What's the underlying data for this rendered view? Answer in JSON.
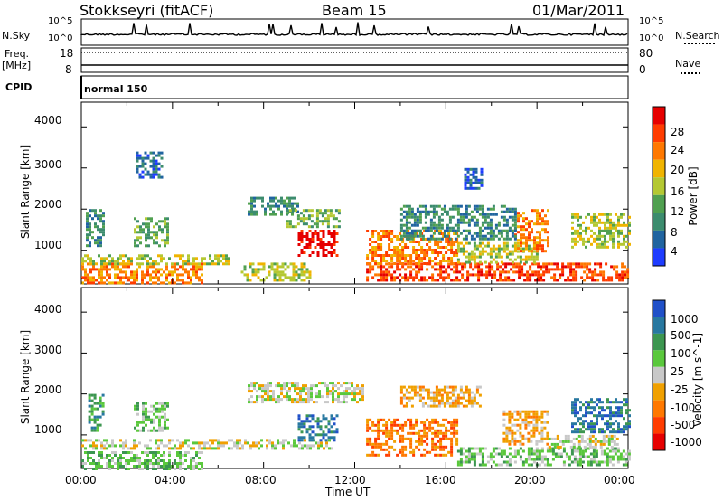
{
  "header": {
    "radar": "Stokkseyri (fitACF)",
    "beam": "Beam 15",
    "date": "01/Mar/2011"
  },
  "strips": {
    "nsky_label": "N.Sky",
    "nsky_ticks": [
      "10^5",
      "10^0"
    ],
    "nsearch_label": "N.Search",
    "nsearch_ticks": [
      "10^5",
      "10^0"
    ],
    "freq_label": "Freq.",
    "freq_unit": "[MHz]",
    "freq_ticks": [
      "18",
      "8"
    ],
    "nave_label": "Nave",
    "nave_ticks": [
      "80",
      "0"
    ],
    "cpid_label": "CPID",
    "cpid_value": "normal 150"
  },
  "colors": {
    "power": [
      "#1e3cff",
      "#2064a0",
      "#3c8c6e",
      "#50a050",
      "#b4c832",
      "#f0b400",
      "#ff7800",
      "#ff3c00",
      "#e60000"
    ],
    "velocity": [
      "#2050c8",
      "#2878a0",
      "#3c9650",
      "#5ac83c",
      "#c8c8c8",
      "#f0a000",
      "#ff7800",
      "#ff3c00",
      "#e60000"
    ]
  },
  "chart_data": [
    {
      "type": "heatmap",
      "panel": "power",
      "ylabel": "Slant Range [km]",
      "yticks": [
        "1000",
        "2000",
        "3000",
        "4000"
      ],
      "ylim": [
        180,
        4600
      ],
      "xlim": [
        0,
        24
      ],
      "colorbar_label": "Power [dB]",
      "colorbar_ticks": [
        "4",
        "8",
        "12",
        "16",
        "20",
        "24",
        "28"
      ],
      "regions": [
        {
          "t0": 0.0,
          "t1": 5.3,
          "r0": 200,
          "r1": 700,
          "level": 6
        },
        {
          "t0": 0.0,
          "t1": 6.5,
          "r0": 700,
          "r1": 900,
          "level": 4
        },
        {
          "t0": 0.2,
          "t1": 1.0,
          "r0": 1100,
          "r1": 2000,
          "level": 2
        },
        {
          "t0": 2.3,
          "t1": 3.8,
          "r0": 1100,
          "r1": 1800,
          "level": 3
        },
        {
          "t0": 2.4,
          "t1": 3.5,
          "r0": 2800,
          "r1": 3400,
          "level": 1
        },
        {
          "t0": 7.3,
          "t1": 9.5,
          "r0": 1900,
          "r1": 2300,
          "level": 2
        },
        {
          "t0": 9.0,
          "t1": 11.3,
          "r0": 1600,
          "r1": 2000,
          "level": 3
        },
        {
          "t0": 9.5,
          "t1": 11.2,
          "r0": 900,
          "r1": 1500,
          "level": 8
        },
        {
          "t0": 7.0,
          "t1": 10.0,
          "r0": 300,
          "r1": 700,
          "level": 4
        },
        {
          "t0": 12.5,
          "t1": 24.0,
          "r0": 300,
          "r1": 700,
          "level": 7
        },
        {
          "t0": 12.5,
          "t1": 16.5,
          "r0": 700,
          "r1": 1500,
          "level": 6
        },
        {
          "t0": 16.5,
          "t1": 20.0,
          "r0": 700,
          "r1": 1200,
          "level": 4
        },
        {
          "t0": 19.0,
          "t1": 20.5,
          "r0": 1000,
          "r1": 2000,
          "level": 6
        },
        {
          "t0": 14.0,
          "t1": 19.0,
          "r0": 1300,
          "r1": 2100,
          "level": 2
        },
        {
          "t0": 21.5,
          "t1": 24.0,
          "r0": 1100,
          "r1": 1900,
          "level": 4
        },
        {
          "t0": 16.8,
          "t1": 17.6,
          "r0": 2500,
          "r1": 3000,
          "level": 1
        }
      ]
    },
    {
      "type": "heatmap",
      "panel": "velocity",
      "ylabel": "Slant Range [km]",
      "yticks": [
        "1000",
        "2000",
        "3000",
        "4000"
      ],
      "ylim": [
        180,
        4600
      ],
      "xlim": [
        0,
        24
      ],
      "xticks": [
        "00:00",
        "04:00",
        "08:00",
        "12:00",
        "16:00",
        "20:00",
        "00:00"
      ],
      "xlabel": "Time UT",
      "colorbar_label": "Velocity [m s^-1]",
      "colorbar_ticks": [
        "1000",
        "500",
        "100",
        "25",
        "-25",
        "-100",
        "-500",
        "-1000"
      ],
      "regions": [
        {
          "t0": 0.0,
          "t1": 5.3,
          "r0": 200,
          "r1": 600,
          "level": 3
        },
        {
          "t0": 0.0,
          "t1": 11.0,
          "r0": 700,
          "r1": 900,
          "level": 4
        },
        {
          "t0": 2.3,
          "t1": 3.8,
          "r0": 1100,
          "r1": 1800,
          "level": 3
        },
        {
          "t0": 0.3,
          "t1": 1.0,
          "r0": 1100,
          "r1": 2000,
          "level": 2
        },
        {
          "t0": 7.3,
          "t1": 12.3,
          "r0": 1800,
          "r1": 2300,
          "level": 4
        },
        {
          "t0": 9.5,
          "t1": 11.2,
          "r0": 900,
          "r1": 1500,
          "level": 1
        },
        {
          "t0": 12.5,
          "t1": 16.5,
          "r0": 500,
          "r1": 1400,
          "level": 6
        },
        {
          "t0": 14.0,
          "t1": 17.5,
          "r0": 1700,
          "r1": 2200,
          "level": 5
        },
        {
          "t0": 16.5,
          "t1": 24.0,
          "r0": 300,
          "r1": 700,
          "level": 3
        },
        {
          "t0": 18.5,
          "t1": 20.5,
          "r0": 800,
          "r1": 1600,
          "level": 5
        },
        {
          "t0": 21.5,
          "t1": 24.0,
          "r0": 1100,
          "r1": 1900,
          "level": 1
        },
        {
          "t0": 20.5,
          "t1": 23.5,
          "r0": 700,
          "r1": 1000,
          "level": 4
        }
      ]
    }
  ]
}
